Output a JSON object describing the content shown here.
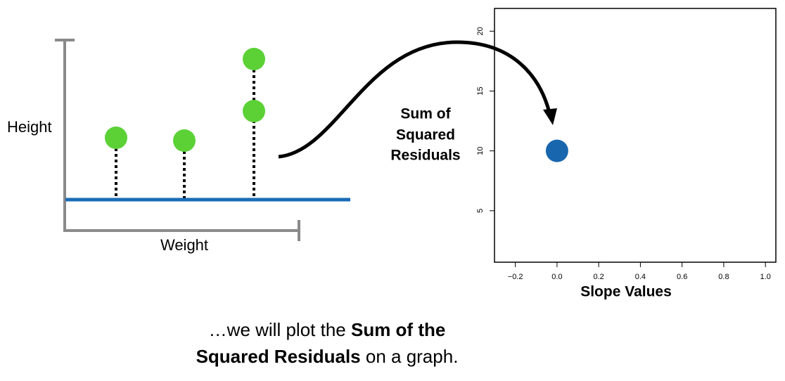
{
  "diagram": {
    "y_label": "Height",
    "x_label": "Weight"
  },
  "arrow_label": [
    "Sum of",
    "Squared",
    "Residuals"
  ],
  "caption": {
    "line1": [
      "…we will plot the ",
      "Sum of the"
    ],
    "line2": [
      "Squared Residuals",
      " on a graph."
    ]
  },
  "chart_data": {
    "type": "scatter",
    "x_label": "Slope Values",
    "series": [
      {
        "color": "#1766ae",
        "x": [
          0
        ],
        "values": [
          10
        ]
      }
    ],
    "xlim": [
      -0.3,
      1.05
    ],
    "ylim": [
      0.7,
      21.9
    ],
    "xticks": [
      {
        "value": -0.2,
        "label": "−0.2"
      },
      {
        "value": 0,
        "label": "0.0"
      },
      0.2,
      0.4,
      0.6,
      0.8,
      {
        "value": 1,
        "label": "1.0"
      }
    ],
    "yticks": [
      5,
      10,
      15,
      20
    ]
  }
}
